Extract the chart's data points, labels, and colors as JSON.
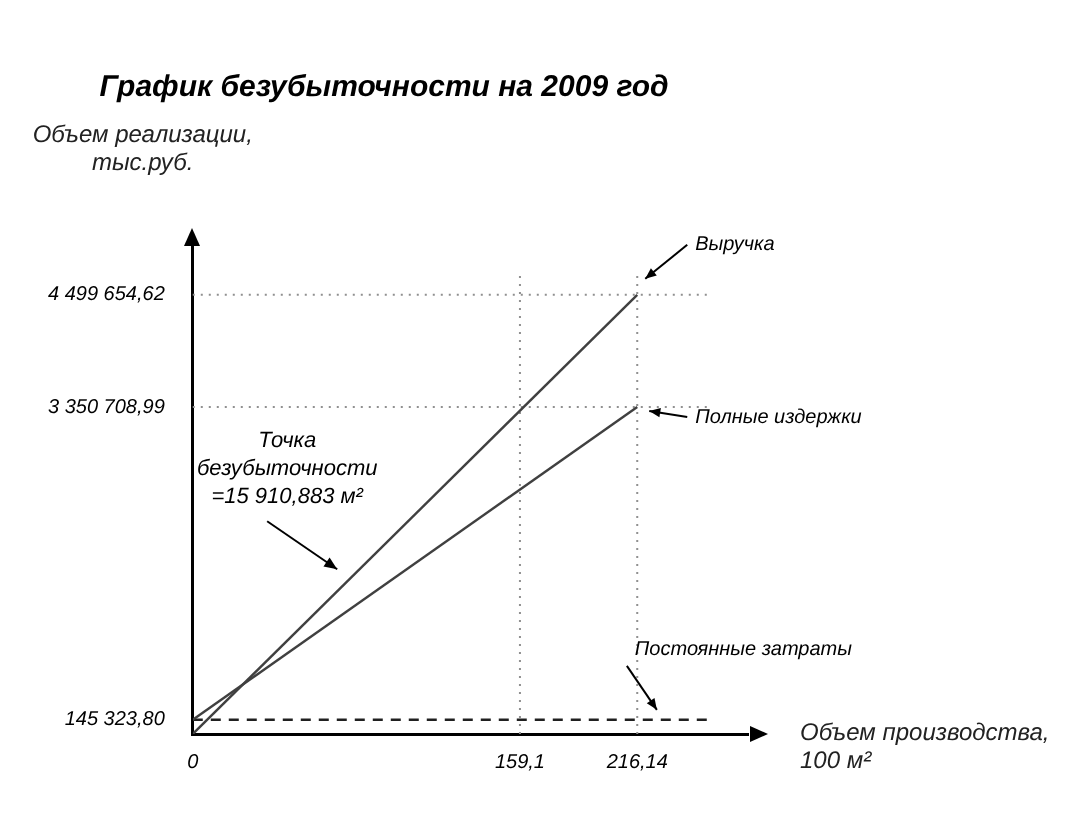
{
  "chart_data": {
    "type": "line",
    "title": "График безубыточности на 2009 год",
    "ylabel": "Объем реализации, тыс.руб.",
    "xlabel": "Объем производства, 100 м²",
    "series": [
      {
        "name": "Выручка",
        "color": "#404040",
        "x": [
          0,
          216.14
        ],
        "values": [
          0,
          4499654.62
        ]
      },
      {
        "name": "Полные издержки",
        "color": "#404040",
        "x": [
          0,
          216.14
        ],
        "values": [
          145323.8,
          3350708.99
        ]
      },
      {
        "name": "Постоянные затраты",
        "color": "#202020",
        "x": [
          0,
          250
        ],
        "values": [
          145323.8,
          145323.8
        ],
        "line_style": "dashed"
      }
    ],
    "xlim": [
      0,
      270
    ],
    "ylim": [
      0,
      5000000
    ],
    "xticks": [
      {
        "value": 0,
        "label": "0"
      },
      {
        "value": 159.1,
        "label": "159,1"
      },
      {
        "value": 216.14,
        "label": "216,14"
      }
    ],
    "yticks": [
      {
        "value": 145323.8,
        "label": "145 323,80"
      },
      {
        "value": 3350708.99,
        "label": "3 350 708,99"
      },
      {
        "value": 4499654.62,
        "label": "4 499 654,62"
      }
    ],
    "ref_lines": [
      {
        "axis": "x",
        "value": 159.1,
        "color": "#909090",
        "line_style": "dotted"
      },
      {
        "axis": "x",
        "value": 216.14,
        "color": "#909090",
        "line_style": "dotted"
      },
      {
        "axis": "y",
        "value": 4499654.62,
        "color": "#909090",
        "line_style": "dotted"
      },
      {
        "axis": "y",
        "value": 3350708.99,
        "color": "#909090",
        "line_style": "dotted"
      }
    ],
    "annotations": [
      "Точка безубыточности =15 910,883 м²"
    ],
    "grid": false,
    "legend": false,
    "marker": "none",
    "line_style": "solid"
  }
}
